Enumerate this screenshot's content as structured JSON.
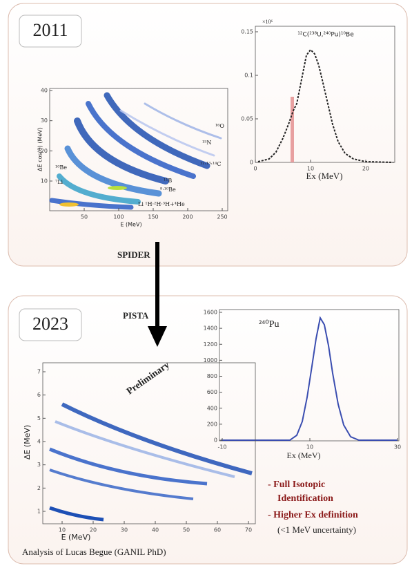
{
  "top_panel": {
    "year": "2011",
    "ex_plot": {
      "title": "¹²C(²³⁸U,²⁴⁰Pu)¹⁰Be",
      "scale": "×10⁶",
      "y_ticks": [
        "0",
        "0.05",
        "0.1",
        "0.15"
      ],
      "x_ticks": [
        "0",
        "10",
        "20"
      ],
      "x_label": "Ex (MeV)"
    },
    "de_plot": {
      "y_label": "ΔE cos(θ) (MeV)",
      "x_label": "E (MeV)",
      "y_ticks": [
        "10",
        "20",
        "30",
        "40"
      ],
      "x_ticks": [
        "50",
        "100",
        "150",
        "200",
        "250"
      ],
      "isotopes": [
        "¹⁶O",
        "¹⁵N",
        "¹²·¹³·¹⁴C",
        "¹¹B",
        "⁹·¹⁰Be",
        "Li ¹H·²H·³H+⁴He",
        "¹⁰Be",
        "⁷Li"
      ]
    }
  },
  "arrow": {
    "upper": "SPIDER",
    "lower": "PISTA"
  },
  "bottom_panel": {
    "year": "2023",
    "ex_plot": {
      "label": "²⁴⁰Pu",
      "x_label": "Ex (MeV)",
      "y_ticks": [
        "0",
        "200",
        "400",
        "600",
        "800",
        "1000",
        "1200",
        "1400",
        "1600"
      ],
      "x_ticks": [
        "-10",
        "10",
        "30"
      ]
    },
    "de_plot": {
      "watermark": "Preliminary",
      "y_label": "ΔE (MeV)",
      "x_label": "E (MeV)",
      "y_ticks": [
        "1",
        "2",
        "3",
        "4",
        "5",
        "6",
        "7"
      ],
      "x_ticks": [
        "10",
        "20",
        "30",
        "40",
        "50",
        "60",
        "70"
      ]
    },
    "notes": [
      "- Full Isotopic",
      "Identification",
      "- Higher Ex definition",
      "(<1 MeV uncertainty)"
    ],
    "credit": "Analysis of Lucas Begue (GANIL PhD)"
  }
}
